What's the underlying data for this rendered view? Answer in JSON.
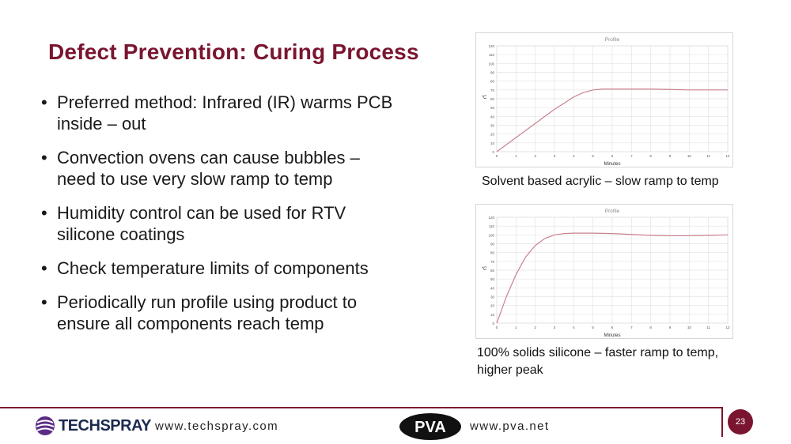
{
  "slide": {
    "title": "Defect Prevention: Curing Process",
    "page_number": "23"
  },
  "bullets": [
    "Preferred method: Infrared (IR) warms PCB inside – out",
    "Convection ovens can cause bubbles – need to use very slow ramp to temp",
    "Humidity control can be used for RTV silicone coatings",
    "Check temperature limits of components",
    "Periodically run profile using product to ensure all components reach temp"
  ],
  "captions": {
    "chart1": "Solvent based acrylic – slow ramp to temp",
    "chart2": "100% solids silicone – faster ramp to temp, higher peak"
  },
  "footer": {
    "techspray_logo_text": "TECHSPRAY",
    "techspray_url": "www.techspray.com",
    "pva_logo_text": "PVA",
    "pva_url": "www.pva.net"
  },
  "colors": {
    "accent": "#7a1530",
    "curve": "#c9828f",
    "grid": "#e3e3e3",
    "logo_navy": "#1b2a4e",
    "logo_purple": "#5b2d86"
  },
  "chart_data": [
    {
      "type": "line",
      "title": "Profile",
      "xlabel": "Minutes",
      "ylabel": "°C",
      "xlim": [
        0,
        12
      ],
      "ylim": [
        0,
        120
      ],
      "xticks": [
        0,
        1,
        2,
        3,
        4,
        5,
        6,
        7,
        8,
        9,
        10,
        11,
        12
      ],
      "yticks": [
        0,
        10,
        20,
        30,
        40,
        50,
        60,
        70,
        80,
        90,
        100,
        110,
        120
      ],
      "grid": true,
      "series": [
        {
          "x": [
            0,
            1,
            2,
            3,
            4,
            4.5,
            5,
            5.5,
            6,
            7,
            8,
            9,
            10,
            11,
            12
          ],
          "y": [
            0,
            16,
            32,
            48,
            62,
            67,
            70,
            71,
            71,
            71,
            71,
            70.5,
            70,
            70,
            70
          ]
        }
      ]
    },
    {
      "type": "line",
      "title": "Profile",
      "xlabel": "Minutes",
      "ylabel": "°C",
      "xlim": [
        0,
        12
      ],
      "ylim": [
        0,
        120
      ],
      "xticks": [
        0,
        1,
        2,
        3,
        4,
        5,
        6,
        7,
        8,
        9,
        10,
        11,
        12
      ],
      "yticks": [
        0,
        10,
        20,
        30,
        40,
        50,
        60,
        70,
        80,
        90,
        100,
        110,
        120
      ],
      "grid": true,
      "series": [
        {
          "x": [
            0,
            0.5,
            1,
            1.5,
            2,
            2.5,
            3,
            3.5,
            4,
            5,
            6,
            7,
            8,
            9,
            10,
            11,
            12
          ],
          "y": [
            0,
            30,
            55,
            75,
            88,
            96,
            100,
            101.5,
            102,
            102,
            101.5,
            100.5,
            99.5,
            99,
            99,
            99.5,
            100
          ]
        }
      ]
    }
  ]
}
